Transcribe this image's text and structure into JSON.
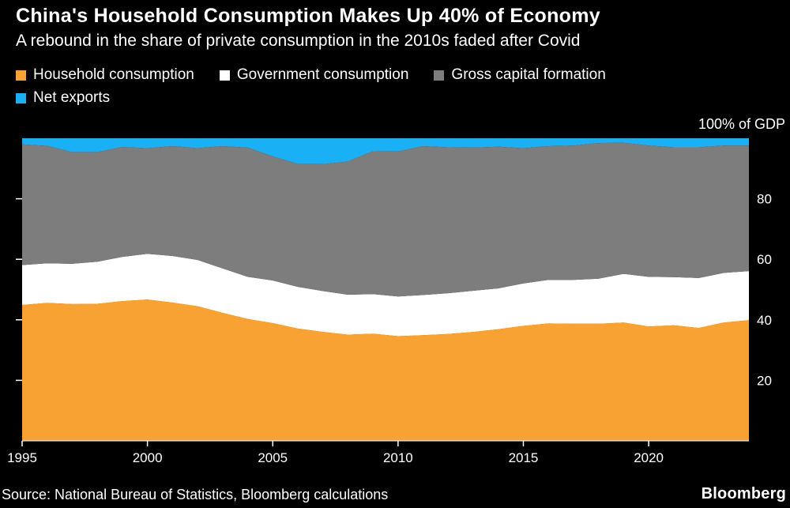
{
  "header": {
    "title": "China's Household Consumption Makes Up 40% of Economy",
    "subtitle": "A rebound in the share of private consumption in the 2010s faded after Covid"
  },
  "chart_data": {
    "type": "area",
    "stacked": true,
    "unit_label": "100% of GDP",
    "background": "#000000",
    "text_color": "#ffffff",
    "ylim": [
      0,
      100
    ],
    "yticks": [
      20,
      40,
      60,
      80
    ],
    "xticks": [
      1995,
      2000,
      2005,
      2010,
      2015,
      2020
    ],
    "legend_position": "top",
    "grid": false,
    "x": [
      1995,
      1996,
      1997,
      1998,
      1999,
      2000,
      2001,
      2002,
      2003,
      2004,
      2005,
      2006,
      2007,
      2008,
      2009,
      2010,
      2011,
      2012,
      2013,
      2014,
      2015,
      2016,
      2017,
      2018,
      2019,
      2020,
      2021,
      2022,
      2023,
      2024
    ],
    "series": [
      {
        "name": "Household consumption",
        "color": "#F7A233",
        "values": [
          44.9,
          45.6,
          45.2,
          45.3,
          46.2,
          46.7,
          45.7,
          44.5,
          42.3,
          40.3,
          38.9,
          37.1,
          36.0,
          35.1,
          35.4,
          34.6,
          34.9,
          35.3,
          36.0,
          36.9,
          38.0,
          38.8,
          38.7,
          38.7,
          39.1,
          37.8,
          38.2,
          37.3,
          39.1,
          39.9
        ]
      },
      {
        "name": "Government consumption",
        "color": "#FFFFFF",
        "values": [
          13.2,
          13.1,
          13.3,
          13.9,
          14.6,
          15.1,
          15.4,
          15.3,
          14.7,
          13.9,
          14.1,
          13.8,
          13.5,
          13.2,
          13.1,
          13.1,
          13.3,
          13.5,
          13.6,
          13.5,
          14.0,
          14.4,
          14.5,
          14.9,
          16.1,
          16.4,
          15.9,
          16.5,
          16.4,
          16.2
        ]
      },
      {
        "name": "Gross capital formation",
        "color": "#7D7D7D",
        "values": [
          39.9,
          38.8,
          36.9,
          36.2,
          36.3,
          34.9,
          36.3,
          36.9,
          40.4,
          42.7,
          41.0,
          40.6,
          41.9,
          44.0,
          47.2,
          47.9,
          49.2,
          48.2,
          47.3,
          46.8,
          44.7,
          44.2,
          44.4,
          44.8,
          43.3,
          43.4,
          42.9,
          43.2,
          42.1,
          41.5
        ]
      },
      {
        "name": "Net exports",
        "color": "#19B0F5",
        "values": [
          2.0,
          2.5,
          4.6,
          4.6,
          2.9,
          3.3,
          2.6,
          3.3,
          2.6,
          3.1,
          6.0,
          8.5,
          8.6,
          7.7,
          4.3,
          4.4,
          2.6,
          3.0,
          3.1,
          2.8,
          3.3,
          2.6,
          2.4,
          1.6,
          1.5,
          2.4,
          3.0,
          3.0,
          2.4,
          2.4
        ]
      }
    ]
  },
  "footer": {
    "source": "Source: National Bureau of Statistics, Bloomberg calculations",
    "brand": "Bloomberg"
  }
}
